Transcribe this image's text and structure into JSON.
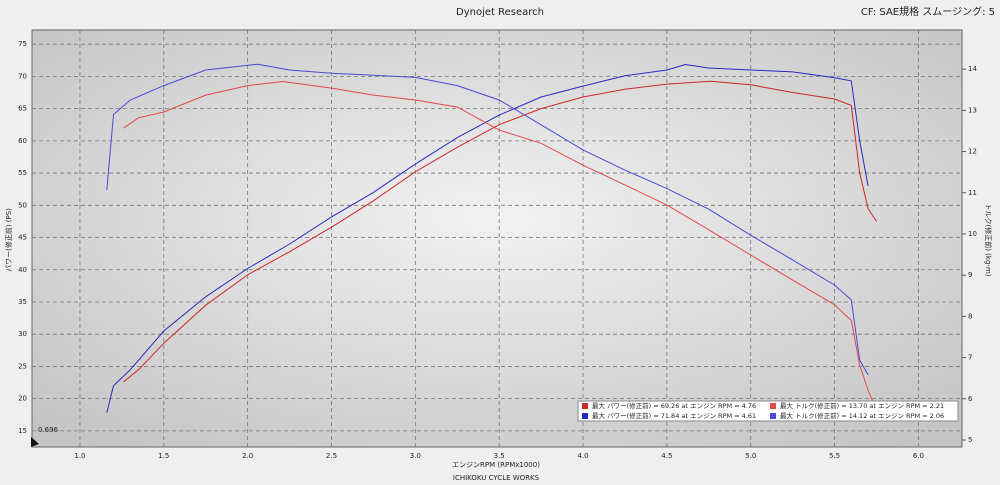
{
  "chart_data": {
    "type": "line",
    "title": "Dynojet Research",
    "subtitle": "CF: SAE規格 スムージング: 5",
    "x_label": "エンジンRPM (RPMx1000)",
    "y_label": "パワー(修正前) (PS)",
    "y2_label": "トルク(修正前) (kg-m)",
    "footer": "ICHIKOKU CYCLE WORKS",
    "annotation": "0.696",
    "grid": true,
    "legend": "bottom-right",
    "xlim": [
      0.714,
      6.26
    ],
    "ylim": [
      12.5,
      77.2
    ],
    "y2lim": [
      4.83,
      14.95
    ],
    "xticks": [
      {
        "value": 1,
        "label": "1.0"
      },
      1.5,
      {
        "value": 2,
        "label": "2.0"
      },
      2.5,
      {
        "value": 3,
        "label": "3.0"
      },
      3.5,
      {
        "value": 4,
        "label": "4.0"
      },
      4.5,
      {
        "value": 5,
        "label": "5.0"
      },
      5.5,
      {
        "value": 6,
        "label": "6.0"
      }
    ],
    "yticks": [
      15,
      20,
      25,
      30,
      35,
      40,
      45,
      50,
      55,
      60,
      65,
      70,
      75
    ],
    "y2ticks": [
      5,
      6,
      7,
      8,
      9,
      10,
      11,
      12,
      13,
      14
    ],
    "series": [
      {
        "name": "最大 パワー(修正前) = 69.26 at エンジン RPM = 4.76",
        "color": "#cc2a2a",
        "x": [
          1.26,
          1.35,
          1.5,
          1.75,
          2.0,
          2.25,
          2.5,
          2.75,
          3.0,
          3.25,
          3.5,
          3.75,
          4.0,
          4.25,
          4.5,
          4.76,
          5.0,
          5.25,
          5.5,
          5.6,
          5.65,
          5.7,
          5.75
        ],
        "values": [
          22.6,
          24.5,
          28.6,
          34.5,
          39.2,
          42.8,
          46.6,
          50.7,
          55.2,
          59,
          62.5,
          65,
          66.8,
          68,
          68.8,
          69.26,
          68.7,
          67.5,
          66.5,
          65.5,
          55,
          49.5,
          47.5
        ]
      },
      {
        "name": "最大 パワー(修正前) = 71.84 at エンジン RPM = 4.61",
        "color": "#2a2ac0",
        "x": [
          1.16,
          1.2,
          1.3,
          1.5,
          1.75,
          2.0,
          2.25,
          2.5,
          2.75,
          3.0,
          3.25,
          3.5,
          3.75,
          4.0,
          4.25,
          4.5,
          4.61,
          4.75,
          5.0,
          5.25,
          5.5,
          5.6,
          5.65,
          5.7
        ],
        "values": [
          17.8,
          22,
          24.5,
          30.5,
          35.8,
          40.2,
          44,
          48.2,
          52,
          56.4,
          60.5,
          64,
          66.8,
          68.5,
          70.1,
          71,
          71.84,
          71.3,
          71,
          70.7,
          69.8,
          69.3,
          60,
          53
        ]
      },
      {
        "name": "最大 トルク(修正前) = 13.70 at エンジン RPM = 2.21",
        "color": "#e04a4a",
        "axis": "y2",
        "x": [
          1.26,
          1.35,
          1.5,
          1.75,
          2.0,
          2.21,
          2.5,
          2.75,
          3.0,
          3.25,
          3.5,
          3.75,
          4.0,
          4.25,
          4.5,
          4.75,
          5.0,
          5.25,
          5.5,
          5.6,
          5.65,
          5.7,
          5.75
        ],
        "values": [
          12.57,
          12.82,
          12.96,
          13.37,
          13.6,
          13.7,
          13.54,
          13.37,
          13.25,
          13.08,
          12.52,
          12.2,
          11.67,
          11.19,
          10.7,
          10.1,
          9.49,
          8.88,
          8.28,
          7.9,
          6.82,
          6.2,
          5.73
        ]
      },
      {
        "name": "最大 トルク(修正前) = 14.12 at エンジン RPM = 2.06",
        "color": "#4a4ad8",
        "axis": "y2",
        "x": [
          1.16,
          1.2,
          1.3,
          1.5,
          1.75,
          2.06,
          2.25,
          2.5,
          2.75,
          3.0,
          3.25,
          3.5,
          3.75,
          4.0,
          4.25,
          4.5,
          4.75,
          5.0,
          5.25,
          5.5,
          5.6,
          5.65,
          5.7
        ],
        "values": [
          11.07,
          12.9,
          13.25,
          13.6,
          13.98,
          14.12,
          13.98,
          13.9,
          13.85,
          13.8,
          13.6,
          13.25,
          12.65,
          12.04,
          11.55,
          11.1,
          10.6,
          9.97,
          9.37,
          8.76,
          8.4,
          6.94,
          6.58
        ]
      }
    ]
  }
}
